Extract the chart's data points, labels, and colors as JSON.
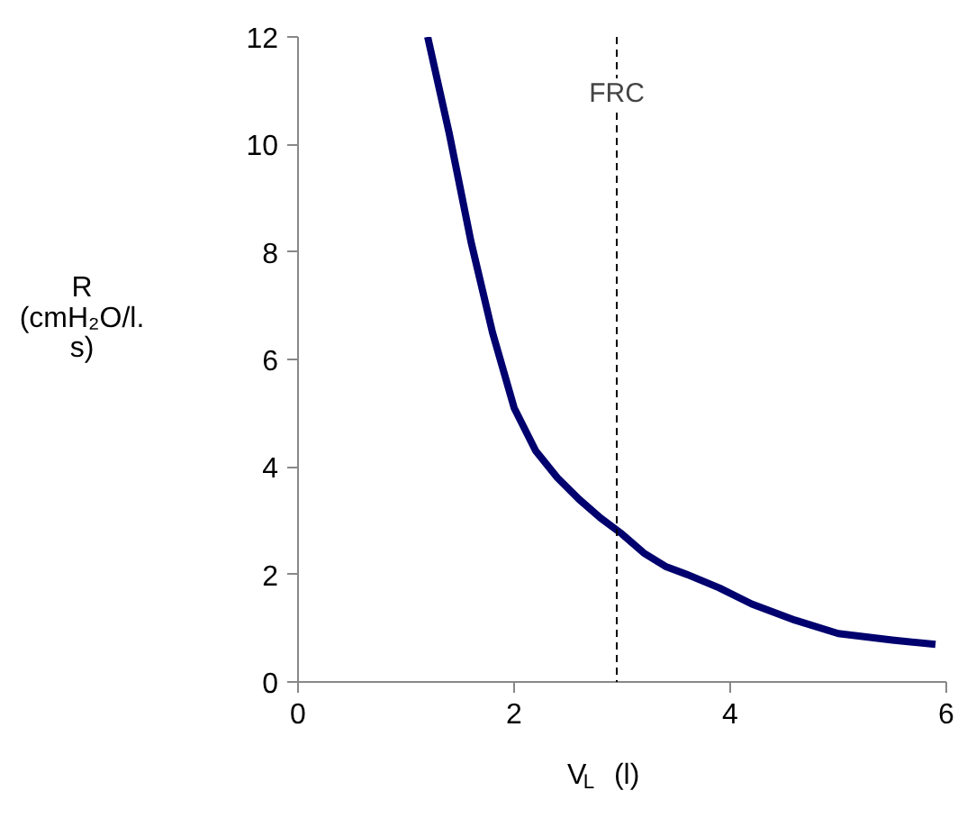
{
  "chart_data": {
    "type": "line",
    "xlabel": "V$_{L}$ (l)",
    "ylabel": "R (cmH₂O/l. s)",
    "x": [
      1.2,
      1.4,
      1.6,
      1.8,
      2.0,
      2.2,
      2.4,
      2.6,
      2.8,
      3.0,
      3.2,
      3.4,
      3.6,
      3.9,
      4.2,
      4.6,
      5.0,
      5.5,
      5.9
    ],
    "series": [
      {
        "color": "#00006e",
        "values": [
          12,
          10.2,
          8.2,
          6.5,
          5.1,
          4.3,
          3.8,
          3.4,
          3.05,
          2.75,
          2.4,
          2.15,
          2.0,
          1.75,
          1.45,
          1.15,
          0.9,
          0.78,
          0.7
        ]
      }
    ],
    "xlim": [
      0,
      6
    ],
    "ylim": [
      0,
      12
    ],
    "xticks": [
      0,
      2,
      4,
      6
    ],
    "yticks": [
      0,
      2,
      4,
      6,
      8,
      10,
      12
    ],
    "grid": false,
    "marker": "none",
    "line_style": "solid",
    "ref_lines": [
      {
        "axis": "x",
        "value": 2.95,
        "label": "FRC",
        "line_style": "dashed",
        "color": "#000000"
      }
    ]
  }
}
